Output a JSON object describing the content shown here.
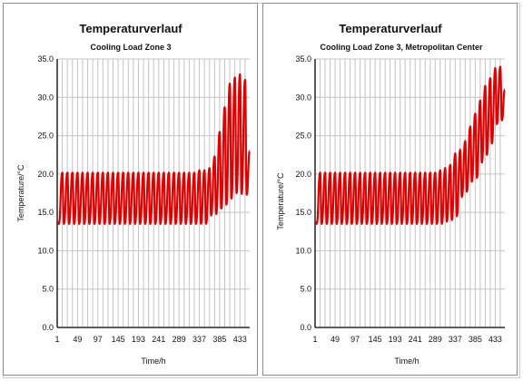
{
  "chart_data": [
    {
      "type": "line",
      "title": "Temperaturverlauf",
      "subtitle": "Cooling Load Zone 3",
      "xlabel": "Time/h",
      "ylabel": "Temperature/°C",
      "xlim": [
        1,
        456
      ],
      "ylim": [
        0,
        35
      ],
      "x_ticks": [
        "1",
        "49",
        "97",
        "145",
        "193",
        "241",
        "289",
        "337",
        "385",
        "433"
      ],
      "y_ticks": [
        "0.0",
        "5.0",
        "10.0",
        "15.0",
        "20.0",
        "25.0",
        "30.0",
        "35.0"
      ],
      "grid": true,
      "line_color": "#e00000",
      "series": [
        {
          "x": [
            1,
            5,
            13,
            17,
            25,
            29,
            37,
            41,
            49,
            53,
            61,
            65,
            73,
            77,
            85,
            89,
            97,
            101,
            109,
            113,
            121,
            125,
            133,
            137,
            145,
            149,
            157,
            161,
            169,
            173,
            181,
            185,
            193,
            197,
            205,
            209,
            217,
            221,
            229,
            233,
            241,
            245,
            253,
            257,
            265,
            269,
            277,
            281,
            289,
            293,
            301,
            305,
            313,
            317,
            325,
            329,
            337,
            341,
            349,
            353,
            361,
            365,
            373,
            377,
            385,
            389,
            397,
            401,
            409,
            413,
            421,
            425,
            433,
            437,
            445,
            449,
            456
          ],
          "y": [
            13.8,
            13.5,
            20.2,
            13.5,
            20.2,
            13.5,
            20.2,
            13.5,
            20.2,
            13.5,
            20.2,
            13.5,
            20.2,
            13.5,
            20.2,
            13.5,
            20.2,
            13.5,
            20.2,
            13.5,
            20.2,
            13.5,
            20.2,
            13.5,
            20.2,
            13.5,
            20.2,
            13.5,
            20.2,
            13.5,
            20.2,
            13.5,
            20.2,
            13.5,
            20.2,
            13.5,
            20.2,
            13.5,
            20.2,
            13.5,
            20.2,
            13.5,
            20.2,
            13.5,
            20.2,
            13.5,
            20.2,
            13.5,
            20.2,
            13.5,
            20.2,
            13.5,
            20.2,
            13.5,
            20.2,
            13.5,
            20.5,
            13.5,
            20.5,
            13.5,
            20.8,
            14.6,
            22.3,
            14.8,
            25.5,
            15.5,
            28.7,
            16.0,
            31.8,
            16.8,
            32.6,
            17.5,
            33.0,
            17.4,
            32.3,
            17.3,
            23.0
          ]
        }
      ]
    },
    {
      "type": "line",
      "title": "Temperaturverlauf",
      "subtitle": "Cooling Load Zone 3, Metropolitan Center",
      "xlabel": "Time/h",
      "ylabel": "Temperature/°C",
      "xlim": [
        1,
        456
      ],
      "ylim": [
        0,
        35
      ],
      "x_ticks": [
        "1",
        "49",
        "97",
        "145",
        "193",
        "241",
        "289",
        "337",
        "385",
        "433"
      ],
      "y_ticks": [
        "0.0",
        "5.0",
        "10.0",
        "15.0",
        "20.0",
        "25.0",
        "30.0",
        "35.0"
      ],
      "grid": true,
      "line_color": "#e00000",
      "series": [
        {
          "x": [
            1,
            5,
            13,
            17,
            25,
            29,
            37,
            41,
            49,
            53,
            61,
            65,
            73,
            77,
            85,
            89,
            97,
            101,
            109,
            113,
            121,
            125,
            133,
            137,
            145,
            149,
            157,
            161,
            169,
            173,
            181,
            185,
            193,
            197,
            205,
            209,
            217,
            221,
            229,
            233,
            241,
            245,
            253,
            257,
            265,
            269,
            277,
            281,
            289,
            293,
            301,
            305,
            313,
            317,
            325,
            329,
            337,
            341,
            349,
            353,
            361,
            365,
            373,
            377,
            385,
            389,
            397,
            401,
            409,
            413,
            421,
            425,
            433,
            437,
            445,
            449,
            456
          ],
          "y": [
            13.8,
            13.5,
            20.2,
            13.5,
            20.2,
            13.5,
            20.2,
            13.5,
            20.2,
            13.5,
            20.2,
            13.5,
            20.2,
            13.5,
            20.2,
            13.5,
            20.2,
            13.5,
            20.2,
            13.5,
            20.2,
            13.5,
            20.2,
            13.5,
            20.2,
            13.5,
            20.2,
            13.5,
            20.2,
            13.5,
            20.2,
            13.5,
            20.2,
            13.5,
            20.2,
            13.5,
            20.2,
            13.5,
            20.2,
            13.5,
            20.2,
            13.5,
            20.2,
            13.5,
            20.2,
            13.5,
            20.2,
            13.5,
            20.2,
            13.5,
            20.5,
            13.5,
            20.8,
            13.8,
            21.2,
            14.0,
            22.7,
            14.5,
            23.2,
            17.0,
            24.3,
            17.7,
            26.2,
            19.0,
            27.9,
            19.5,
            29.6,
            21.5,
            31.5,
            22.5,
            32.5,
            24.0,
            33.8,
            26.5,
            34.0,
            27.0,
            31.0
          ]
        }
      ]
    }
  ]
}
